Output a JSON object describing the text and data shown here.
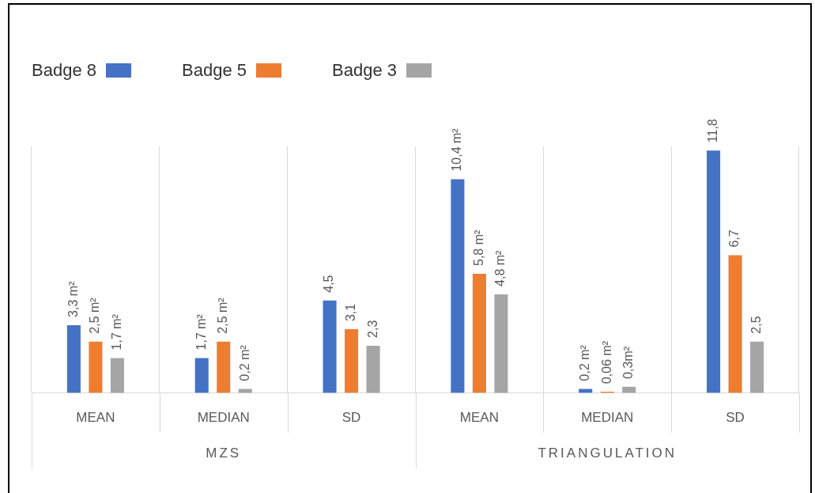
{
  "chart_data": {
    "type": "bar",
    "categories": [
      "MEAN",
      "MEDIAN",
      "SD",
      "MEAN",
      "MEDIAN",
      "SD"
    ],
    "series": [
      {
        "name": "Badge 8",
        "color": "#4472c4",
        "values": [
          3.3,
          1.7,
          4.5,
          10.4,
          0.2,
          11.8
        ],
        "value_labels": [
          "3,3 m²",
          "1,7 m²",
          "4,5",
          "10,4 m²",
          "0,2 m²",
          "11,8"
        ]
      },
      {
        "name": "Badge 5",
        "color": "#ed7d31",
        "values": [
          2.5,
          2.5,
          3.1,
          5.8,
          0.06,
          6.7
        ],
        "value_labels": [
          "2,5 m²",
          "2,5 m²",
          "3,1",
          "5,8 m²",
          "0,06 m²",
          "6,7"
        ]
      },
      {
        "name": "Badge 3",
        "color": "#a5a5a5",
        "values": [
          1.7,
          0.2,
          2.3,
          4.8,
          0.3,
          2.5
        ],
        "value_labels": [
          "1,7 m²",
          "0,2 m²",
          "2,3",
          "4,8 m²",
          "0,3m²",
          "2,5"
        ]
      }
    ],
    "annotations": [
      "MZS",
      "TRIANGULATION"
    ],
    "legend": "top left",
    "grid": "x"
  }
}
